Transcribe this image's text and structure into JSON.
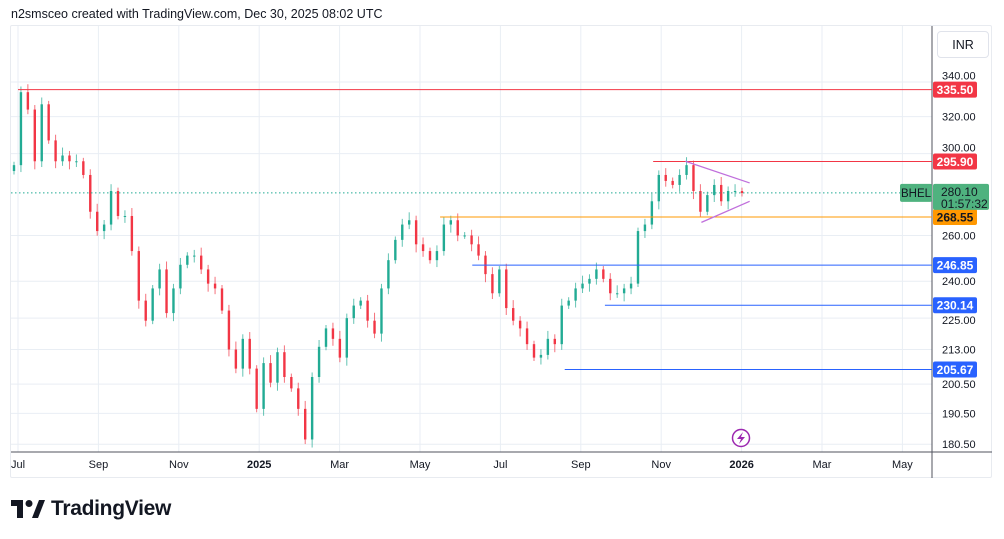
{
  "header": {
    "attribution": "n2smsceo created with TradingView.com, Dec 30, 2025 08:02 UTC"
  },
  "currency_button": "INR",
  "footer": {
    "brand": "TradingView"
  },
  "colors": {
    "up": "#22ab94",
    "down": "#f23645",
    "resistance": "#f23645",
    "support": "#2962ff",
    "breakout": "#ff9800",
    "triangle": "#c06fdc",
    "grid": "#e9eef4"
  },
  "chart_data": {
    "type": "candlestick",
    "symbol": "BHEL",
    "scale": "log",
    "ylim": [
      178,
      345
    ],
    "x_ticks": [
      "Jul",
      "Sep",
      "Nov",
      "2025",
      "Mar",
      "May",
      "Jul",
      "Sep",
      "Nov",
      "2026",
      "Mar",
      "May"
    ],
    "y_ticks": [
      "340.00",
      "320.00",
      "300.00",
      "260.00",
      "240.00",
      "225.00",
      "213.00",
      "200.50",
      "190.50",
      "180.50"
    ],
    "y_tick_values": [
      340,
      320,
      300,
      260,
      240,
      225,
      213,
      200.5,
      190.5,
      180.5
    ],
    "closes": [
      294,
      334,
      324,
      296,
      327,
      307,
      296,
      299,
      296,
      296,
      289,
      271,
      262,
      265,
      281,
      269,
      269,
      253,
      232,
      224,
      237,
      245,
      227,
      237,
      247,
      251,
      251,
      245,
      239,
      237,
      228,
      213,
      206,
      217,
      206,
      192,
      208,
      201,
      212,
      203,
      199,
      192,
      182,
      203,
      214,
      221,
      217,
      210,
      225,
      230,
      232,
      224,
      219,
      237,
      249,
      258,
      265,
      267,
      256,
      253,
      249,
      253,
      265,
      267,
      260,
      260,
      256,
      251,
      243,
      235,
      245,
      229,
      224,
      221,
      215,
      210,
      211,
      217,
      215,
      230,
      232,
      237,
      239,
      241,
      245,
      241,
      235,
      235,
      237,
      239,
      262,
      265,
      276,
      289,
      286,
      284,
      289,
      294,
      281,
      271,
      279,
      284,
      276,
      281,
      281,
      280
    ],
    "last_price": {
      "symbol": "BHEL",
      "price": "280.10",
      "countdown": "01:57:32",
      "value": 280.1
    },
    "levels": [
      {
        "label": "335.50",
        "value": 335.5,
        "kind": "resistance",
        "from_month": 0
      },
      {
        "label": "295.90",
        "value": 295.9,
        "kind": "resistance",
        "from_month": 15.8
      },
      {
        "label": "268.55",
        "value": 268.55,
        "kind": "breakout",
        "from_month": 10.5
      },
      {
        "label": "246.85",
        "value": 246.85,
        "kind": "support",
        "from_month": 11.3
      },
      {
        "label": "230.14",
        "value": 230.14,
        "kind": "support",
        "from_month": 14.6
      },
      {
        "label": "205.67",
        "value": 205.67,
        "kind": "support",
        "from_month": 13.6
      }
    ],
    "triangle": {
      "upper": [
        [
          16.6,
          296
        ],
        [
          18.2,
          285
        ]
      ],
      "lower": [
        [
          17.0,
          266
        ],
        [
          18.2,
          276
        ]
      ]
    }
  }
}
